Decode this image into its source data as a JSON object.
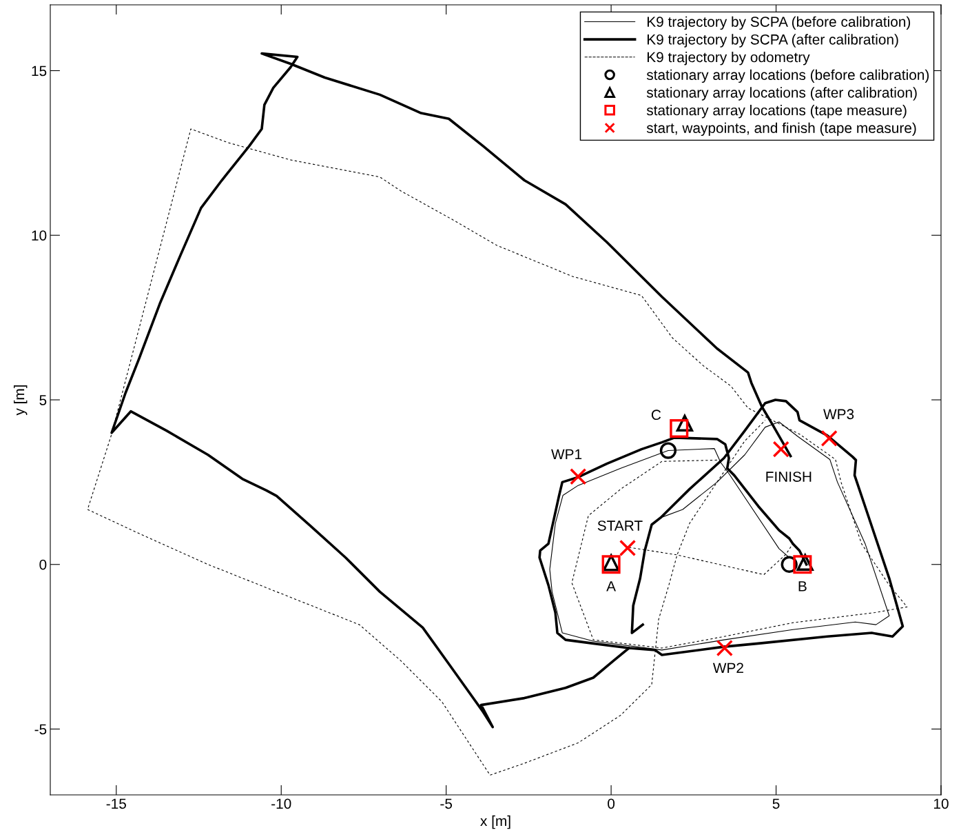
{
  "chart_data": {
    "type": "line",
    "xlabel": "x [m]",
    "ylabel": "y [m]",
    "xlim": [
      -17,
      10
    ],
    "ylim": [
      -7,
      17
    ],
    "xticks": [
      -15,
      -10,
      -5,
      0,
      5,
      10
    ],
    "yticks": [
      -5,
      0,
      5,
      10,
      15
    ],
    "grid": false,
    "legend": "top right",
    "series": [
      {
        "name": "K9 trajectory by SCPA (before calibration)",
        "line_style": "solid",
        "marker": "none",
        "color": "#000000",
        "x": [
          5.4,
          5.09,
          3.55,
          3.32,
          3.13,
          1.73,
          0.29,
          -1.0,
          -1.46,
          -1.69,
          -1.86,
          -1.79,
          -1.48,
          -0.54,
          1.54,
          3.42,
          5.51,
          7.4,
          8.03,
          8.43,
          7.7,
          6.86,
          6.63,
          5.67,
          5.09,
          4.67,
          4.05,
          3.21,
          2.17,
          1.5
        ],
        "values": [
          0.21,
          0.48,
          2.79,
          3.1,
          3.52,
          3.46,
          2.92,
          2.4,
          2.1,
          1.25,
          -0.15,
          -0.83,
          -2.08,
          -2.33,
          -2.6,
          -2.29,
          -1.98,
          -1.75,
          -1.83,
          -1.56,
          0.63,
          2.5,
          3.19,
          3.88,
          4.33,
          4.17,
          3.33,
          2.5,
          1.67,
          1.42
        ]
      },
      {
        "name": "K9 trajectory by SCPA (after calibration)",
        "line_style": "solid",
        "marker": "none",
        "color": "#000000",
        "x": [
          0.96,
          0.63,
          0.67,
          0.88,
          1.02,
          1.23,
          1.5,
          2.38,
          3.42,
          4.05,
          4.67,
          4.98,
          5.3,
          5.65,
          5.71,
          6.55,
          7.32,
          7.42,
          7.38,
          7.8,
          8.43,
          8.84,
          8.53,
          7.9,
          6.55,
          4.46,
          3.42,
          1.54,
          1.33,
          0.54,
          -0.54,
          -1.38,
          -1.63,
          -1.69,
          -1.9,
          -2.17,
          -2.15,
          -1.9,
          -1.58,
          -1.48,
          -1.0,
          -0.13,
          0.92,
          1.54,
          1.92,
          3.21,
          3.46,
          3.57,
          3.52,
          3.73,
          4.46,
          5.09,
          5.4,
          5.51,
          5.71,
          5.92,
          null,
          0.54,
          0.08,
          -0.54,
          -1.38,
          -2.63,
          -3.94,
          -3.59,
          -3.88,
          -4.92,
          -5.71,
          -7.01,
          -8.05,
          -9.09,
          -10.14,
          -10.45,
          -11.18,
          -12.22,
          -13.47,
          -14.56,
          -15.14,
          -14.72,
          -14.31,
          -13.68,
          -13.06,
          -12.43,
          -11.8,
          -10.97,
          -10.59,
          -10.51,
          -10.24,
          -9.72,
          -9.51,
          -10.59,
          -9.72,
          -8.68,
          -7.01,
          -5.76,
          -4.92,
          -3.88,
          -2.63,
          -1.38,
          -0.13,
          1.54,
          3.21,
          4.15,
          4.25,
          4.57,
          4.88,
          5.44
        ],
        "values": [
          -1.83,
          -2.08,
          -1.25,
          -0.42,
          0.42,
          1.21,
          1.42,
          2.29,
          3.23,
          4.06,
          4.9,
          5.0,
          4.96,
          4.63,
          4.38,
          3.92,
          3.27,
          3.17,
          2.71,
          1.46,
          -0.42,
          -1.88,
          -2.19,
          -2.08,
          -2.19,
          -2.4,
          -2.5,
          -2.75,
          -2.6,
          -2.54,
          -2.4,
          -2.29,
          -2.08,
          -1.46,
          -0.63,
          0.21,
          0.42,
          0.63,
          2.08,
          2.5,
          2.65,
          3.06,
          3.5,
          3.71,
          3.85,
          3.81,
          3.65,
          3.23,
          2.92,
          2.71,
          1.77,
          1.04,
          0.79,
          0.63,
          0.42,
          0.0,
          null,
          -2.54,
          -2.92,
          -3.44,
          -3.75,
          -4.06,
          -4.27,
          -4.94,
          -4.48,
          -3.02,
          -1.92,
          -0.83,
          0.21,
          1.15,
          2.08,
          2.25,
          2.6,
          3.33,
          4.06,
          4.65,
          4.0,
          5.21,
          6.25,
          7.92,
          9.38,
          10.83,
          11.67,
          12.71,
          13.23,
          13.96,
          14.48,
          15.1,
          15.42,
          15.52,
          15.21,
          14.79,
          14.27,
          13.71,
          13.54,
          12.71,
          11.67,
          10.94,
          9.79,
          8.13,
          6.56,
          5.83,
          5.52,
          4.79,
          4.27,
          3.29
        ]
      },
      {
        "name": "K9 trajectory by odometry",
        "line_style": "dashed",
        "marker": "none",
        "color": "#000000",
        "x": [
          0.54,
          2.0,
          4.63,
          5.3,
          5.51,
          null,
          3.21,
          1.54,
          0.29,
          -0.69,
          -1.19,
          -0.54,
          1.54,
          3.42,
          5.51,
          8.01,
          8.97,
          8.43,
          7.59,
          6.97,
          6.8,
          5.71,
          4.98,
          4.15,
          3.63,
          2.79,
          1.86,
          0.92,
          -1.17,
          -3.46,
          -4.71,
          -6.38,
          -7.01,
          -9.72,
          -11.6,
          -12.74,
          -15.14,
          -15.87,
          -14.31,
          -12.22,
          -10.14,
          -7.63,
          -6.38,
          -5.13,
          -3.67,
          -2.63,
          -1.0,
          0.29,
          1.23,
          1.33,
          1.44,
          1.75,
          2.0,
          2.38,
          3.21,
          4.05,
          4.67
        ],
        "values": [
          0.52,
          0.29,
          -0.31,
          0.31,
          0.63,
          null,
          3.17,
          3.13,
          2.29,
          1.48,
          -0.56,
          -2.29,
          -2.54,
          -2.19,
          -1.77,
          -1.46,
          -1.29,
          -0.63,
          0.63,
          2.5,
          3.19,
          3.96,
          4.33,
          4.75,
          5.42,
          6.04,
          6.88,
          8.17,
          8.75,
          9.69,
          10.42,
          11.35,
          11.77,
          12.29,
          12.81,
          13.23,
          3.96,
          1.67,
          0.94,
          0.0,
          -0.83,
          -1.83,
          -2.92,
          -4.17,
          -6.4,
          -6.04,
          -5.42,
          -4.58,
          -3.65,
          -2.71,
          -1.67,
          -0.63,
          0.29,
          1.25,
          2.5,
          3.75,
          4.38
        ]
      },
      {
        "name": "stationary array locations (before calibration)",
        "type": "scatter",
        "marker": "circle",
        "color": "#000000",
        "x": [
          1.73,
          5.4
        ],
        "values": [
          3.46,
          0.0
        ]
      },
      {
        "name": "stationary array locations (after calibration)",
        "type": "scatter",
        "marker": "triangle",
        "color": "#000000",
        "x": [
          0.0,
          2.23,
          5.88
        ],
        "values": [
          0.05,
          4.29,
          0.06
        ]
      },
      {
        "name": "stationary array locations (tape measure)",
        "type": "scatter",
        "marker": "square",
        "color": "#ff0000",
        "x": [
          0.0,
          2.06,
          5.8
        ],
        "values": [
          0.0,
          4.13,
          0.0
        ]
      },
      {
        "name": "start, waypoints, and finish (tape measure)",
        "type": "scatter",
        "marker": "cross",
        "color": "#ff0000",
        "x": [
          0.5,
          -1.0,
          3.44,
          6.61,
          5.15
        ],
        "values": [
          0.5,
          2.67,
          -2.54,
          3.83,
          3.5
        ]
      }
    ],
    "annotations": [
      {
        "text": "A",
        "x": 0.0,
        "y": 0.0
      },
      {
        "text": "B",
        "x": 5.8,
        "y": 0.0
      },
      {
        "text": "C",
        "x": 2.06,
        "y": 4.13
      },
      {
        "text": "WP1",
        "x": -1.0,
        "y": 2.67
      },
      {
        "text": "WP2",
        "x": 3.44,
        "y": -2.54
      },
      {
        "text": "WP3",
        "x": 6.61,
        "y": 3.83
      },
      {
        "text": "START",
        "x": 0.5,
        "y": 0.5
      },
      {
        "text": "FINISH",
        "x": 5.15,
        "y": 3.5
      }
    ]
  }
}
